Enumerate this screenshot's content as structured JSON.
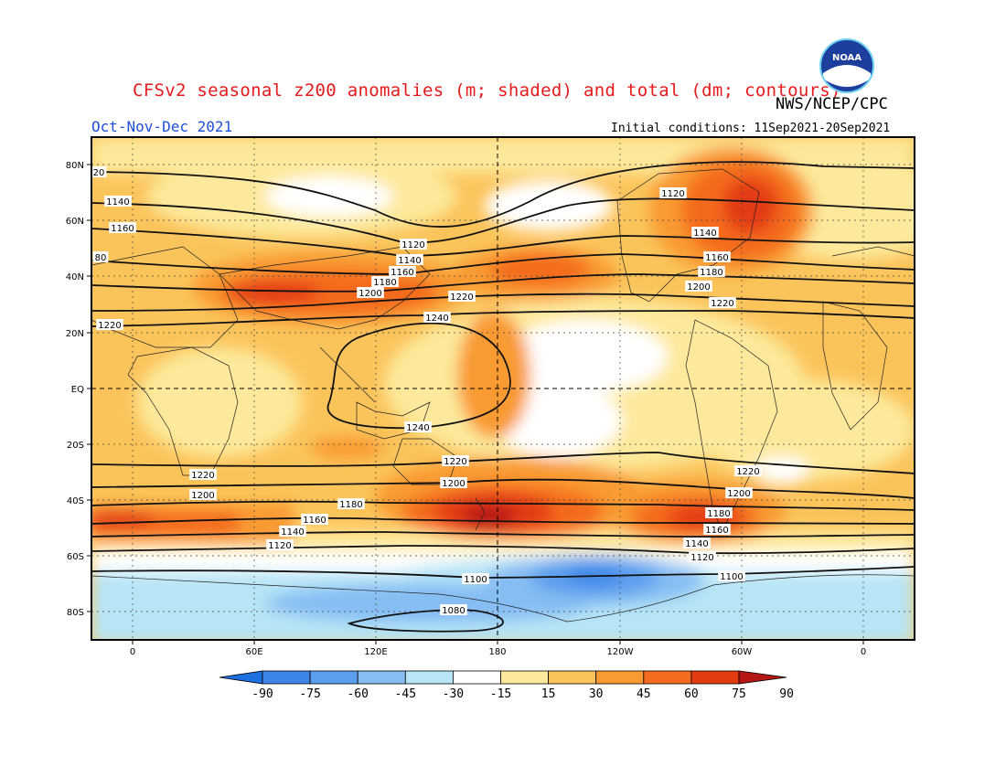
{
  "header": {
    "title": "CFSv2 seasonal z200 anomalies (m; shaded) and total (dm; contours)",
    "organization": "NWS/NCEP/CPC",
    "season": "Oct-Nov-Dec 2021",
    "initial_conditions": "Initial conditions: 11Sep2021-20Sep2021",
    "logo_text": "NOAA"
  },
  "axes": {
    "lat_labels": [
      "80N",
      "60N",
      "40N",
      "20N",
      "EQ",
      "20S",
      "40S",
      "60S",
      "80S"
    ],
    "lon_labels": [
      "0",
      "60E",
      "120E",
      "180",
      "120W",
      "60W",
      "0"
    ]
  },
  "colorbar": {
    "ticks": [
      "-90",
      "-75",
      "-60",
      "-45",
      "-30",
      "-15",
      "15",
      "30",
      "45",
      "60",
      "75",
      "90"
    ],
    "colors": [
      "#1e6fe0",
      "#3d86e8",
      "#5c9eee",
      "#86bdf3",
      "#b7e5f6",
      "#ffffff",
      "#fde99b",
      "#fbc45b",
      "#f99a32",
      "#f46a1f",
      "#e33b12",
      "#b51616"
    ]
  },
  "contour_labels": [
    "20",
    "1140",
    "1160",
    "80",
    "1220",
    "1120",
    "1140",
    "1160",
    "1180",
    "1200",
    "1220",
    "1240",
    "1240",
    "1120",
    "1140",
    "1160",
    "1180",
    "1200",
    "1220",
    "1220",
    "1220",
    "1200",
    "1200",
    "1180",
    "1160",
    "1140",
    "1120",
    "1220",
    "1200",
    "1180",
    "1160",
    "1140",
    "1120",
    "1100",
    "1100",
    "1080"
  ]
}
